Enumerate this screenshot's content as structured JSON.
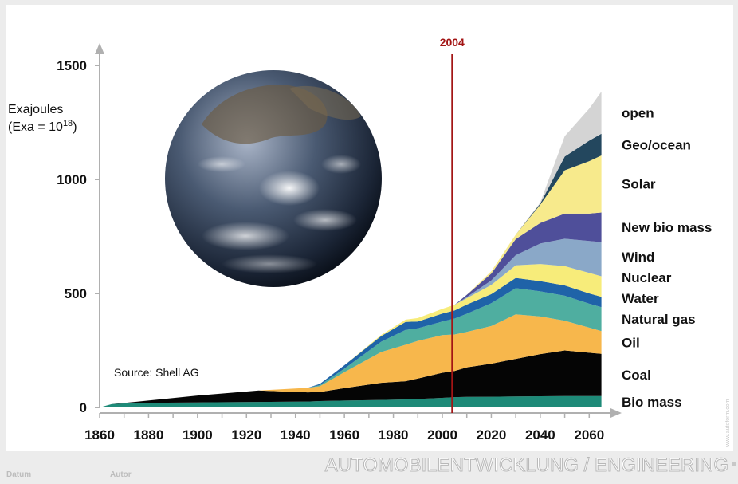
{
  "chart_data": {
    "type": "area",
    "stacked": true,
    "y_unit_line1": "Exajoules",
    "y_unit_line2_prefix": "(Exa = 10",
    "y_unit_line2_sup": "18",
    "y_unit_line2_suffix": ")",
    "ylim": [
      0,
      1500
    ],
    "xlim": [
      1860,
      2070
    ],
    "y_ticks": [
      0,
      500,
      1000,
      1500
    ],
    "x_ticks": [
      1860,
      1880,
      1900,
      1920,
      1940,
      1960,
      1980,
      2000,
      2020,
      2040,
      2060
    ],
    "grid": false,
    "legend_placement": "right",
    "x": [
      1860,
      1865,
      1875,
      1900,
      1925,
      1945,
      1950,
      1960,
      1975,
      1985,
      1990,
      2000,
      2005,
      2010,
      2020,
      2030,
      2040,
      2050,
      2060,
      2065
    ],
    "series": [
      {
        "name": "Bio mass",
        "color": "#1e8a78",
        "values": [
          0,
          15,
          20,
          22,
          24,
          26,
          28,
          30,
          33,
          35,
          37,
          42,
          45,
          46,
          47,
          48,
          49,
          50,
          50,
          50
        ]
      },
      {
        "name": "Coal",
        "color": "#050505",
        "values": [
          0,
          0,
          5,
          30,
          50,
          40,
          40,
          55,
          75,
          80,
          90,
          110,
          115,
          130,
          145,
          165,
          185,
          200,
          190,
          185
        ]
      },
      {
        "name": "Oil",
        "color": "#f7b74c",
        "values": [
          0,
          0,
          0,
          0,
          0,
          20,
          25,
          70,
          135,
          160,
          165,
          165,
          160,
          155,
          165,
          195,
          165,
          130,
          110,
          100
        ]
      },
      {
        "name": "Natural gas",
        "color": "#4faea0",
        "values": [
          0,
          0,
          0,
          0,
          0,
          0,
          5,
          15,
          45,
          65,
          55,
          60,
          70,
          80,
          100,
          115,
          110,
          110,
          105,
          105
        ]
      },
      {
        "name": "Water",
        "color": "#1f63a8",
        "values": [
          0,
          0,
          0,
          0,
          0,
          0,
          5,
          15,
          25,
          35,
          30,
          35,
          35,
          40,
          40,
          45,
          45,
          45,
          45,
          45
        ]
      },
      {
        "name": "Nuclear",
        "color": "#f7ec7a",
        "values": [
          0,
          0,
          0,
          0,
          0,
          0,
          0,
          0,
          5,
          10,
          15,
          20,
          25,
          28,
          40,
          55,
          75,
          85,
          90,
          90
        ]
      },
      {
        "name": "Wind",
        "color": "#8aa8c8",
        "values": [
          0,
          0,
          0,
          0,
          0,
          0,
          0,
          0,
          0,
          0,
          0,
          0,
          0,
          5,
          20,
          45,
          90,
          120,
          140,
          150
        ]
      },
      {
        "name": "New bio mass",
        "color": "#4f4f9a",
        "values": [
          0,
          0,
          0,
          0,
          0,
          0,
          0,
          0,
          0,
          0,
          0,
          0,
          0,
          10,
          30,
          70,
          90,
          110,
          120,
          130
        ]
      },
      {
        "name": "Solar",
        "color": "#f7ea8c",
        "values": [
          0,
          0,
          0,
          0,
          0,
          0,
          0,
          0,
          0,
          0,
          0,
          0,
          0,
          0,
          10,
          20,
          80,
          190,
          230,
          250
        ]
      },
      {
        "name": "Geo/ocean",
        "color": "#23475e",
        "values": [
          0,
          0,
          0,
          0,
          0,
          0,
          0,
          0,
          0,
          0,
          0,
          0,
          0,
          0,
          0,
          0,
          5,
          60,
          90,
          95
        ]
      },
      {
        "name": "open",
        "color": "#d4d4d4",
        "values": [
          0,
          0,
          0,
          0,
          0,
          0,
          0,
          0,
          0,
          0,
          0,
          0,
          0,
          0,
          0,
          0,
          5,
          90,
          140,
          185
        ]
      }
    ],
    "marker_year": 2004,
    "marker_label": "2004",
    "marker_color": "#a31515",
    "annotation": "Source: Shell AG"
  },
  "footer": {
    "date_label": "Datum",
    "author_label": "Autor",
    "title": "AUTOMOBILENTWICKLUNG / ENGINEERING",
    "side_mark": "www.autoform.com"
  }
}
